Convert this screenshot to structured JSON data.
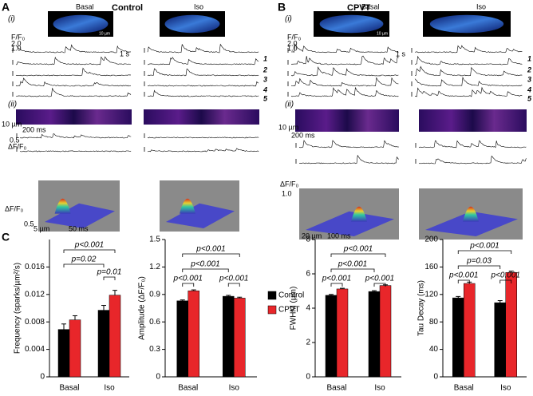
{
  "panels": {
    "A": {
      "letter": "A",
      "title": "Control",
      "sub_i": "(i)",
      "sub_ii": "(ii)",
      "col_basal": "Basal",
      "col_iso": "Iso",
      "img_scale": "10 µm",
      "ff_label": "F/F₀",
      "ff_hi": "2.0",
      "ff_lo": "1.0",
      "time_scale": "1 s",
      "cell_ids": [
        "1",
        "2",
        "3",
        "4",
        "5"
      ],
      "line_space": "10 µm",
      "line_time": "200 ms",
      "df_small": "0.5",
      "df_label": "ΔF/F₀",
      "surf_label": "ΔF/F₀",
      "surf_scale": "0.5",
      "surf_space": "5 µm",
      "surf_time": "50 ms"
    },
    "B": {
      "letter": "B",
      "title": "CPVT",
      "sub_i": "(i)",
      "sub_ii": "(ii)",
      "col_basal": "Basal",
      "col_iso": "Iso",
      "img_scale": "10 µm",
      "ff_label": "F/F₀",
      "ff_hi": "2.0",
      "ff_lo": "1.0",
      "time_scale": "1 s",
      "cell_ids": [
        "1",
        "2",
        "3",
        "4",
        "5"
      ],
      "line_space": "10 µm",
      "line_time": "200 ms",
      "surf_label": "ΔF/F₀",
      "surf_scale": "1.0",
      "surf_space": "20 µm",
      "surf_time": "100 ms"
    },
    "C": {
      "letter": "C"
    }
  },
  "chart_data": [
    {
      "type": "bar",
      "ylabel": "Frequency (sparks/µm²/s)",
      "categories": [
        "Basal",
        "Iso"
      ],
      "series": [
        {
          "name": "Control",
          "color": "#000000",
          "values": [
            0.0069,
            0.0097
          ],
          "errors": [
            0.0008,
            0.0007
          ]
        },
        {
          "name": "CPVT",
          "color": "#e8262a",
          "values": [
            0.0083,
            0.0119
          ],
          "errors": [
            0.0006,
            0.0007
          ]
        }
      ],
      "ylim": [
        0,
        0.02
      ],
      "yticks": [
        0,
        0.004,
        0.008,
        0.012,
        0.016
      ],
      "annotations": [
        "p=0.01",
        "p=0.02",
        "p<0.001"
      ]
    },
    {
      "type": "bar",
      "ylabel": "Amplitude (ΔF/F₀)",
      "categories": [
        "Basal",
        "Iso"
      ],
      "series": [
        {
          "name": "Control",
          "color": "#000000",
          "values": [
            0.83,
            0.88
          ],
          "errors": [
            0.01,
            0.01
          ]
        },
        {
          "name": "CPVT",
          "color": "#e8262a",
          "values": [
            0.94,
            0.86
          ],
          "errors": [
            0.01,
            0.01
          ]
        }
      ],
      "ylim": [
        0,
        1.5
      ],
      "yticks": [
        0,
        0.3,
        0.6,
        0.9,
        1.2,
        1.5
      ],
      "annotations": [
        "p<0.001",
        "p<0.001",
        "p<0.001",
        "p<0.001"
      ],
      "legend": true
    },
    {
      "type": "bar",
      "ylabel": "FWHM (µm)",
      "categories": [
        "Basal",
        "Iso"
      ],
      "series": [
        {
          "name": "Control",
          "color": "#000000",
          "values": [
            4.75,
            4.97
          ],
          "errors": [
            0.05,
            0.05
          ]
        },
        {
          "name": "CPVT",
          "color": "#e8262a",
          "values": [
            5.12,
            5.32
          ],
          "errors": [
            0.04,
            0.04
          ]
        }
      ],
      "ylim": [
        0,
        8
      ],
      "yticks": [
        0,
        2,
        4,
        6,
        8
      ],
      "annotations": [
        "p<0.001",
        "p<0.001",
        "p<0.001",
        "p<0.001"
      ]
    },
    {
      "type": "bar",
      "ylabel": "Tau Decay (ms)",
      "categories": [
        "Basal",
        "Iso"
      ],
      "series": [
        {
          "name": "Control",
          "color": "#000000",
          "values": [
            115,
            108
          ],
          "errors": [
            2,
            3
          ]
        },
        {
          "name": "CPVT",
          "color": "#e8262a",
          "values": [
            136,
            152
          ],
          "errors": [
            2,
            2
          ]
        }
      ],
      "ylim": [
        0,
        200
      ],
      "yticks": [
        0,
        40,
        80,
        120,
        160,
        200
      ],
      "annotations": [
        "p<0.001",
        "p<0.001",
        "p=0.03",
        "p<0.001"
      ]
    }
  ]
}
